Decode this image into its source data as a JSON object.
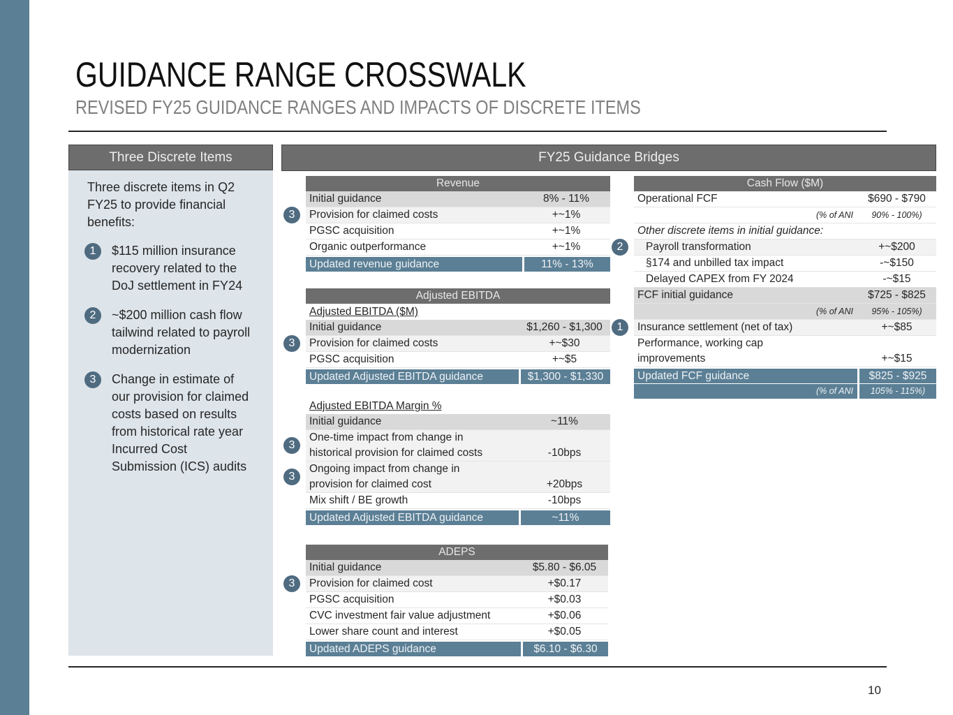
{
  "header": {
    "title": "GUIDANCE RANGE CROSSWALK",
    "subtitle": "REVISED FY25 GUIDANCE RANGES AND IMPACTS OF DISCRETE ITEMS"
  },
  "left_panel": {
    "heading": "Three Discrete Items",
    "intro": "Three discrete items in Q2 FY25 to provide financial benefits:",
    "items": [
      {
        "badge": "1",
        "text": "$115 million insurance recovery related to the DoJ settlement in FY24"
      },
      {
        "badge": "2",
        "text": "~$200 million cash flow tailwind related to payroll modernization"
      },
      {
        "badge": "3",
        "text": "Change in estimate of our provision for claimed costs based on results from historical rate year Incurred Cost Submission (ICS) audits"
      }
    ]
  },
  "bridges_heading": "FY25 Guidance Bridges",
  "revenue": {
    "title": "Revenue",
    "sections": [
      {
        "rows": [
          {
            "label": "Initial guidance",
            "value": "8% - 11%",
            "shade": "dark"
          },
          {
            "label": "Provision for claimed costs",
            "value": "+~1%",
            "badge": "3",
            "shade": "light"
          },
          {
            "label": "PGSC acquisition",
            "value": "+~1%"
          },
          {
            "label": "Organic outperformance",
            "value": "+~1%"
          }
        ],
        "total": {
          "label": "Updated revenue guidance",
          "value": "11% - 13%"
        }
      }
    ]
  },
  "ebitda": {
    "title": "Adjusted EBITDA",
    "sections": [
      {
        "heading": "Adjusted EBITDA ($M)",
        "rows": [
          {
            "label": "Initial guidance",
            "value": "$1,260 - $1,300",
            "shade": "dark"
          },
          {
            "label": "Provision for claimed costs",
            "value": "+~$30",
            "badge": "3",
            "shade": "light"
          },
          {
            "label": "PGSC acquisition",
            "value": "+~$5"
          }
        ],
        "total": {
          "label": "Updated Adjusted EBITDA guidance",
          "value": "$1,300 - $1,330"
        }
      },
      {
        "heading": "Adjusted EBITDA Margin %",
        "rows": [
          {
            "label": "Initial guidance",
            "value": "~11%",
            "shade": "dark"
          },
          {
            "label": [
              "One-time impact from change in",
              "historical provision for claimed costs"
            ],
            "value": "-10bps",
            "badge": "3",
            "shade": "light"
          },
          {
            "label": [
              "Ongoing impact from change in",
              "provision for claimed cost"
            ],
            "value": "+20bps",
            "badge": "3",
            "shade": "light"
          },
          {
            "label": "Mix shift / BE growth",
            "value": "-10bps"
          }
        ],
        "total": {
          "label": "Updated Adjusted EBITDA guidance",
          "value": "~11%"
        }
      }
    ]
  },
  "adeps": {
    "title": "ADEPS",
    "sections": [
      {
        "rows": [
          {
            "label": "Initial guidance",
            "value": "$5.80 - $6.05",
            "shade": "dark"
          },
          {
            "label": "Provision for claimed cost",
            "value": "+$0.17",
            "badge": "3",
            "shade": "light"
          },
          {
            "label": "PGSC acquisition",
            "value": "+$0.03"
          },
          {
            "label": "CVC investment fair value adjustment",
            "value": "+$0.06"
          },
          {
            "label": "Lower share count and interest",
            "value": "+$0.05"
          }
        ],
        "total": {
          "label": "Updated ADEPS guidance",
          "value": "$6.10 - $6.30"
        }
      }
    ]
  },
  "cash_flow": {
    "title": "Cash Flow ($M)",
    "sections": [
      {
        "rows": [
          {
            "label": "Operational FCF",
            "value": "$690 - $790"
          },
          {
            "label": "(% of ANI",
            "value": "90% - 100%)",
            "style": "note"
          },
          {
            "label": "Other discrete items in initial guidance:",
            "style": "italic"
          },
          {
            "label": "Payroll transformation",
            "value": "+~$200",
            "badge": "2",
            "style": "indent",
            "shade": "light"
          },
          {
            "label": "§174 and unbilled tax impact",
            "value": "-~$150",
            "style": "indent"
          },
          {
            "label": "Delayed CAPEX from FY 2024",
            "value": "-~$15",
            "style": "indent"
          },
          {
            "label": "FCF initial guidance",
            "value": "$725 - $825",
            "shade": "dark"
          },
          {
            "label": "(% of ANI",
            "value": "95% - 105%)",
            "style": "note",
            "shade": "dark"
          },
          {
            "label": "Insurance settlement (net of tax)",
            "value": "+~$85",
            "badge": "1",
            "shade": "light"
          },
          {
            "label": [
              "Performance, working cap",
              "improvements"
            ],
            "value": "+~$15"
          }
        ],
        "total": {
          "label": "Updated FCF guidance",
          "value": "$825 - $925"
        },
        "total_note": {
          "label": "(% of ANI",
          "value": "105% - 115%)"
        }
      }
    ]
  },
  "page_number": "10"
}
